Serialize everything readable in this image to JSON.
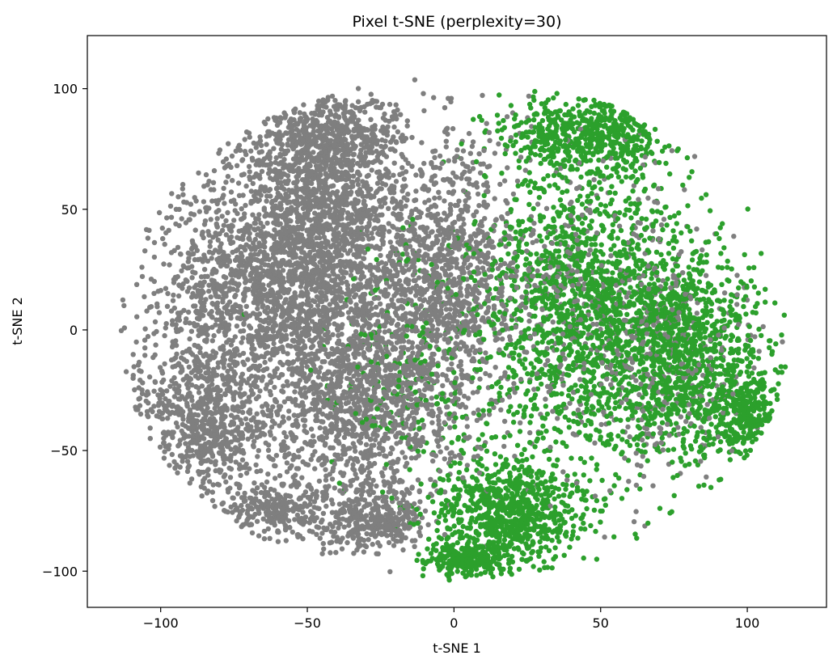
{
  "chart_data": {
    "type": "scatter",
    "title": "Pixel t-SNE (perplexity=30)",
    "xlabel": "t-SNE 1",
    "ylabel": "t-SNE 2",
    "xlim": [
      -125,
      127
    ],
    "ylim": [
      -115,
      122
    ],
    "xticks": [
      -100,
      -50,
      0,
      50,
      100
    ],
    "yticks": [
      -100,
      -50,
      0,
      50,
      100
    ],
    "xtick_labels": [
      "−100",
      "−50",
      "0",
      "50",
      "100"
    ],
    "ytick_labels": [
      "−100",
      "−50",
      "0",
      "50",
      "100"
    ],
    "grid": false,
    "legend": "none",
    "series": [
      {
        "color": "#7f7f7f",
        "regions": [
          {
            "cx": -70,
            "cy": 10,
            "rx": 38,
            "ry": 58,
            "weight": 6
          },
          {
            "cx": -45,
            "cy": 45,
            "rx": 28,
            "ry": 48,
            "weight": 5
          },
          {
            "cx": -30,
            "cy": -30,
            "rx": 30,
            "ry": 52,
            "weight": 5
          },
          {
            "cx": -5,
            "cy": 20,
            "rx": 25,
            "ry": 60,
            "weight": 4
          },
          {
            "cx": -45,
            "cy": 80,
            "rx": 25,
            "ry": 20,
            "weight": 2
          },
          {
            "cx": -85,
            "cy": -40,
            "rx": 20,
            "ry": 30,
            "weight": 2
          },
          {
            "cx": -60,
            "cy": -75,
            "rx": 20,
            "ry": 12,
            "weight": 1
          },
          {
            "cx": -25,
            "cy": -80,
            "rx": 15,
            "ry": 10,
            "weight": 1
          },
          {
            "cx": 35,
            "cy": 10,
            "rx": 45,
            "ry": 70,
            "weight": 2
          },
          {
            "cx": 75,
            "cy": -10,
            "rx": 30,
            "ry": 50,
            "weight": 1
          }
        ]
      },
      {
        "color": "#2ca02c",
        "regions": [
          {
            "cx": 45,
            "cy": 10,
            "rx": 35,
            "ry": 60,
            "weight": 6
          },
          {
            "cx": 80,
            "cy": -10,
            "rx": 28,
            "ry": 45,
            "weight": 4
          },
          {
            "cx": 20,
            "cy": -75,
            "rx": 25,
            "ry": 22,
            "weight": 3
          },
          {
            "cx": 45,
            "cy": 80,
            "rx": 30,
            "ry": 15,
            "weight": 2
          },
          {
            "cx": 100,
            "cy": -35,
            "rx": 12,
            "ry": 15,
            "weight": 1
          },
          {
            "cx": 5,
            "cy": -95,
            "rx": 15,
            "ry": 7,
            "weight": 1
          },
          {
            "cx": 60,
            "cy": 95,
            "rx": 8,
            "ry": 4,
            "weight": 0.3
          },
          {
            "cx": -10,
            "cy": -20,
            "rx": 35,
            "ry": 60,
            "weight": 1
          }
        ]
      }
    ]
  }
}
